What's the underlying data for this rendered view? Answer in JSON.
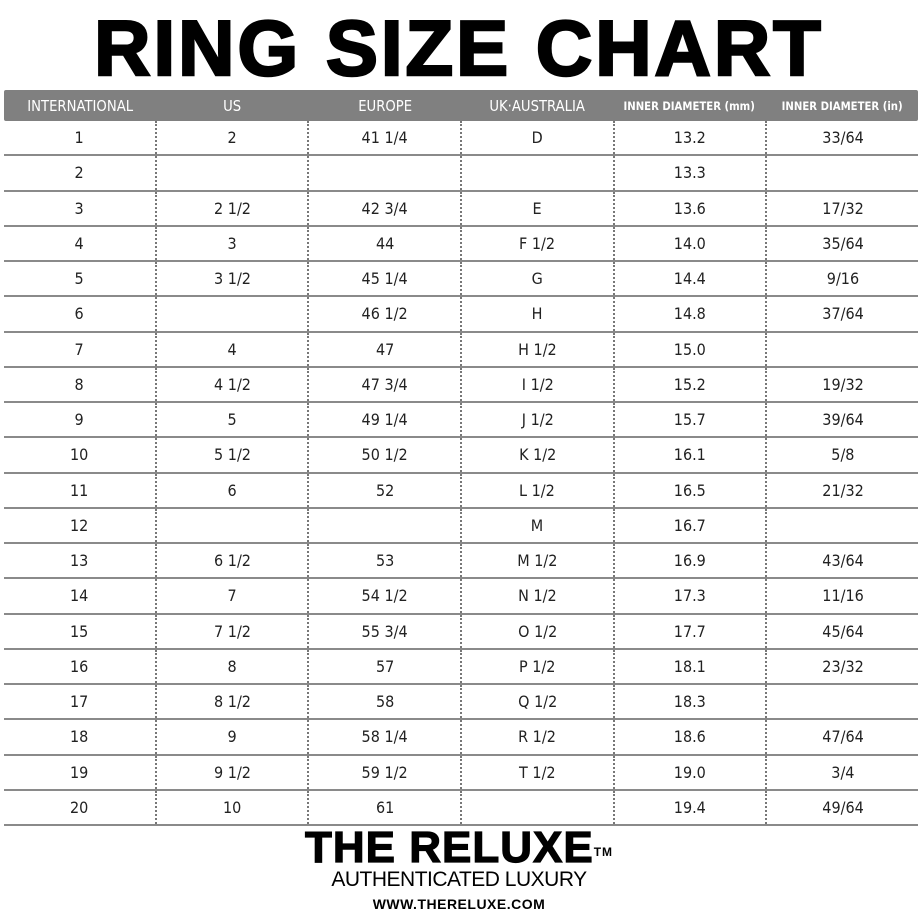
{
  "title": "RING SIZE CHART",
  "header_color": "#808080",
  "columns": [
    "INTERNATIONAL",
    "US",
    "EUROPE",
    "UK·AUSTRALIA",
    "INNER DIAMETER (mm)",
    "INNER DIAMETER (in)"
  ],
  "rows": [
    [
      "1",
      "2",
      "41 1/4",
      "D",
      "13.2",
      "33/64"
    ],
    [
      "2",
      "",
      "",
      "",
      "13.3",
      ""
    ],
    [
      "3",
      "2 1/2",
      "42 3/4",
      "E",
      "13.6",
      "17/32"
    ],
    [
      "4",
      "3",
      "44",
      "F 1/2",
      "14.0",
      "35/64"
    ],
    [
      "5",
      "3 1/2",
      "45 1/4",
      "G",
      "14.4",
      "9/16"
    ],
    [
      "6",
      "",
      "46 1/2",
      "H",
      "14.8",
      "37/64"
    ],
    [
      "7",
      "4",
      "47",
      "H 1/2",
      "15.0",
      ""
    ],
    [
      "8",
      "4 1/2",
      "47 3/4",
      "I 1/2",
      "15.2",
      "19/32"
    ],
    [
      "9",
      "5",
      "49 1/4",
      "J 1/2",
      "15.7",
      "39/64"
    ],
    [
      "10",
      "5 1/2",
      "50 1/2",
      "K 1/2",
      "16.1",
      "5/8"
    ],
    [
      "11",
      "6",
      "52",
      "L 1/2",
      "16.5",
      "21/32"
    ],
    [
      "12",
      "",
      "",
      "M",
      "16.7",
      ""
    ],
    [
      "13",
      "6 1/2",
      "53",
      "M 1/2",
      "16.9",
      "43/64"
    ],
    [
      "14",
      "7",
      "54 1/2",
      "N 1/2",
      "17.3",
      "11/16"
    ],
    [
      "15",
      "7 1/2",
      "55 3/4",
      "O 1/2",
      "17.7",
      "45/64"
    ],
    [
      "16",
      "8",
      "57",
      "P 1/2",
      "18.1",
      "23/32"
    ],
    [
      "17",
      "8 1/2",
      "58",
      "Q 1/2",
      "18.3",
      ""
    ],
    [
      "18",
      "9",
      "58 1/4",
      "R 1/2",
      "18.6",
      "47/64"
    ],
    [
      "19",
      "9 1/2",
      "59 1/2",
      "T 1/2",
      "19.0",
      "3/4"
    ],
    [
      "20",
      "10",
      "61",
      "",
      "19.4",
      "49/64"
    ]
  ],
  "footer": {
    "brand": "THE RELUXE",
    "trademark": "TM",
    "tagline": "AUTHENTICATED LUXURY",
    "url": "WWW.THERELUXE.COM"
  }
}
